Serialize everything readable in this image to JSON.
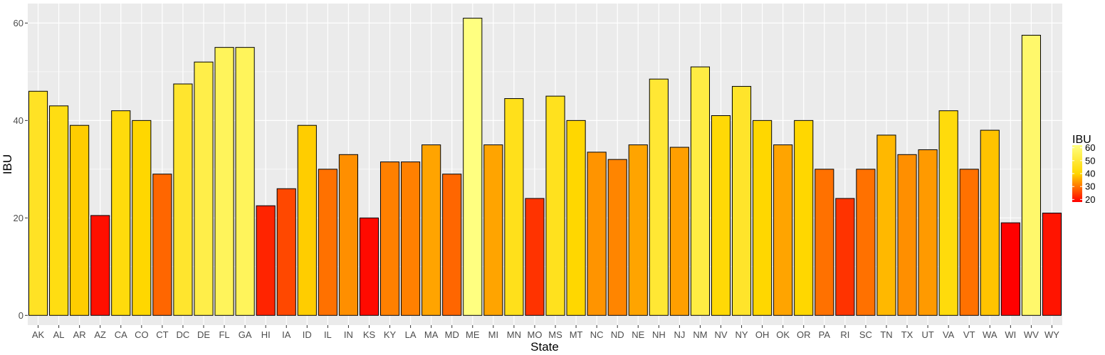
{
  "chart_data": {
    "type": "bar",
    "xlabel": "State",
    "ylabel": "IBU",
    "ylim": [
      -2,
      64
    ],
    "yticks": [
      0,
      20,
      40,
      60
    ],
    "grid": true,
    "legend": {
      "title": "IBU",
      "position": "right",
      "ticks": [
        20,
        30,
        40,
        50,
        60
      ],
      "colors": {
        "low": "#ff0000",
        "mid": "#ffd700",
        "high": "#ffff80"
      }
    },
    "categories": [
      "AK",
      "AL",
      "AR",
      "AZ",
      "CA",
      "CO",
      "CT",
      "DC",
      "DE",
      "FL",
      "GA",
      "HI",
      "IA",
      "ID",
      "IL",
      "IN",
      "KS",
      "KY",
      "LA",
      "MA",
      "MD",
      "ME",
      "MI",
      "MN",
      "MO",
      "MS",
      "MT",
      "NC",
      "ND",
      "NE",
      "NH",
      "NJ",
      "NM",
      "NV",
      "NY",
      "OH",
      "OK",
      "OR",
      "PA",
      "RI",
      "SC",
      "TN",
      "TX",
      "UT",
      "VA",
      "VT",
      "WA",
      "WI",
      "WV",
      "WY"
    ],
    "values": [
      46,
      43,
      39,
      20.5,
      42,
      40,
      29,
      47.5,
      52,
      55,
      55,
      22.5,
      26,
      39,
      30,
      33,
      20,
      31.5,
      31.5,
      35,
      29,
      61,
      35,
      44.5,
      24,
      45,
      40,
      33.5,
      32,
      35,
      48.5,
      34.5,
      51,
      41,
      47,
      40,
      35,
      40,
      30,
      24,
      30,
      37,
      33,
      34,
      42,
      30,
      38,
      19,
      57.5,
      21
    ]
  }
}
